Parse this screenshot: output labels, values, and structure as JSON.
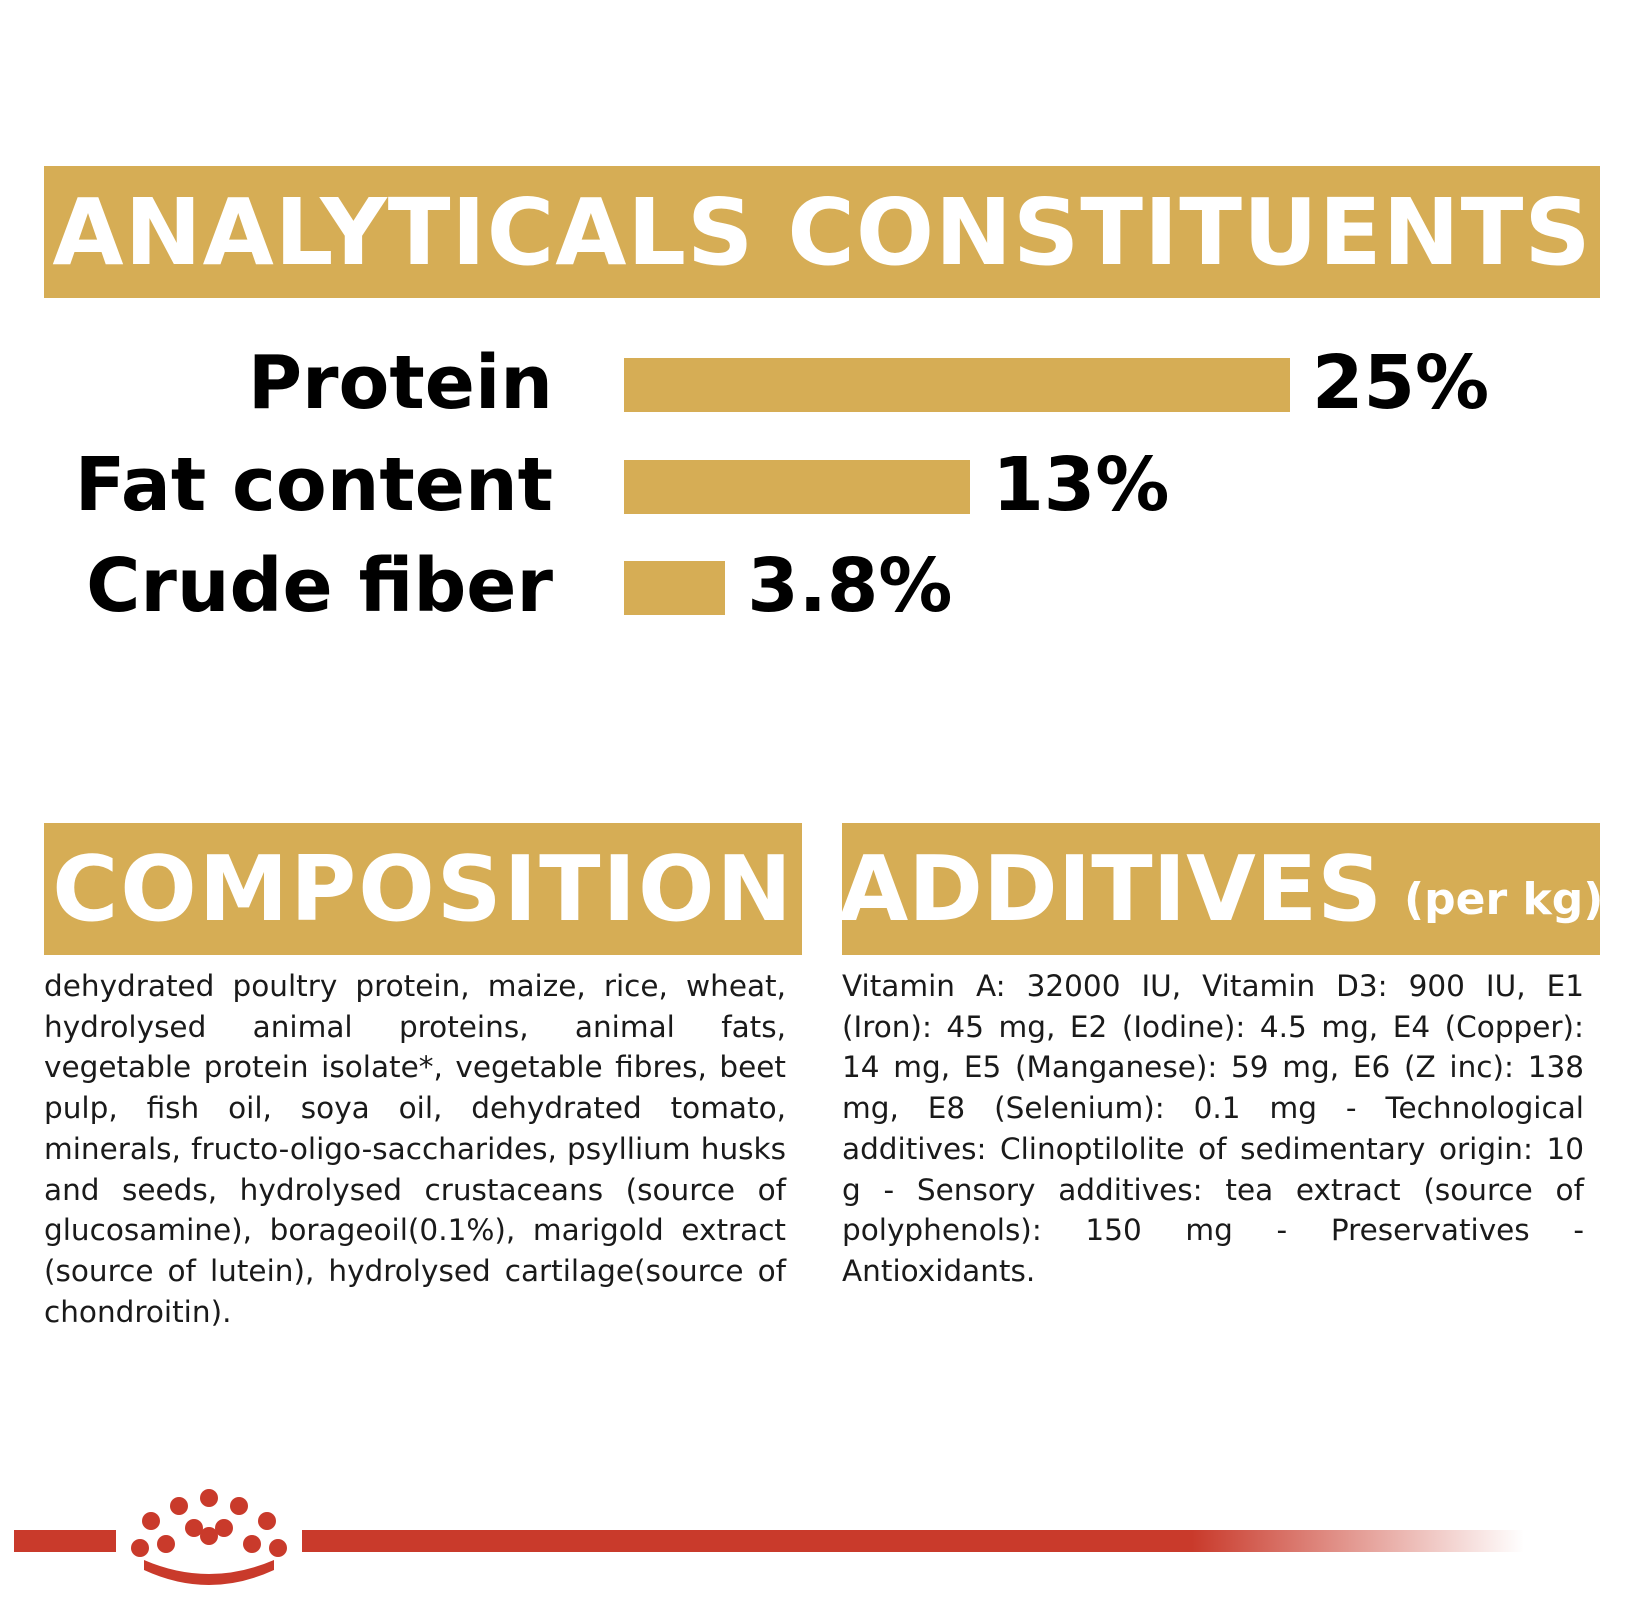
{
  "headers": {
    "analytics": "ANALYTICALS CONSTITUENTS",
    "composition": "COMPOSITION",
    "additives": "ADDITIVES",
    "additives_unit": "(per kg)"
  },
  "chart_data": {
    "type": "bar",
    "orientation": "horizontal",
    "title": "ANALYTICALS CONSTITUENTS",
    "categories": [
      "Protein",
      "Fat content",
      "Crude fiber"
    ],
    "values": [
      25,
      13,
      3.8
    ],
    "value_labels": [
      "25%",
      "13%",
      "3.8%"
    ],
    "unit": "%",
    "xlim": [
      0,
      25
    ],
    "grid": false,
    "legend": "none",
    "bar_color": "#d6ad55"
  },
  "composition_text": "dehydrated poultry protein, maize, rice, wheat, hydrolysed animal proteins, animal fats, vegetable protein isolate*, vegetable fibres, beet pulp, fish oil, soya oil, dehydrated tomato, minerals, fructo-oligo-saccharides, psyllium husks and seeds, hydrolysed crustaceans (source of glucosamine), borageoil(0.1%), marigold extract (source of lutein), hydrolysed cartilage(source of chondroitin).",
  "additives_text": "Vitamin A: 32000 IU, Vitamin D3: 900 IU, E1 (Iron): 45 mg, E2 (Iodine): 4.5 mg, E4 (Copper): 14 mg, E5 (Manganese): 59 mg, E6 (Z inc): 138 mg, E8 (Selenium): 0.1 mg - Technological additives: Clinoptilolite of sedimentary origin: 10 g - Sensory additives: tea extract (source of polyphenols): 150 mg - Preservatives - Antioxidants.",
  "colors": {
    "accent": "#d6ad55",
    "brand_red": "#c93a2b",
    "text": "#000000"
  },
  "logo": {
    "icon": "royal-canin-crown-icon"
  }
}
